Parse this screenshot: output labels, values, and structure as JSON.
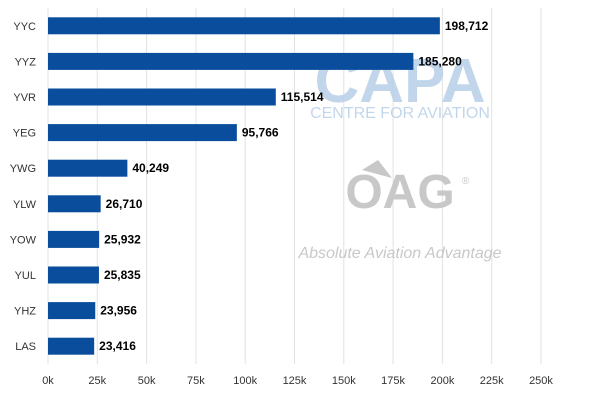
{
  "chart_data": {
    "type": "bar",
    "orientation": "horizontal",
    "categories": [
      "YYC",
      "YYZ",
      "YVR",
      "YEG",
      "YWG",
      "YLW",
      "YOW",
      "YUL",
      "YHZ",
      "LAS"
    ],
    "values": [
      198712,
      185280,
      115514,
      95766,
      40249,
      26710,
      25932,
      25835,
      23956,
      23416
    ],
    "value_labels": [
      "198,712",
      "185,280",
      "115,514",
      "95,766",
      "40,249",
      "26,710",
      "25,932",
      "25,835",
      "23,956",
      "23,416"
    ],
    "ticks": [
      0,
      25000,
      50000,
      75000,
      100000,
      125000,
      150000,
      175000,
      200000,
      225000,
      250000
    ],
    "tick_labels": [
      "0k",
      "25k",
      "50k",
      "75k",
      "100k",
      "125k",
      "150k",
      "175k",
      "200k",
      "225k",
      "250k"
    ],
    "xlim": [
      0,
      250000
    ],
    "grid": true,
    "bar_color": "#0a4d9c",
    "grid_color": "#e2e2e2",
    "title": "",
    "xlabel": "",
    "ylabel": ""
  },
  "watermarks": {
    "capa_logo_text": "CAPA",
    "capa_tagline": "CENTRE FOR AVIATION",
    "oag_logo_text": "OAG",
    "oag_registered": "®",
    "oag_tagline": "Absolute Aviation Advantage",
    "capa_color": "#b8d0e8",
    "oag_color": "#c8c8c8"
  }
}
